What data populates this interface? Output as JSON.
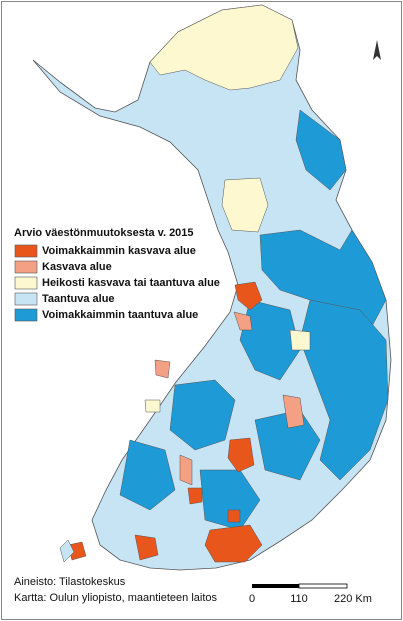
{
  "legend": {
    "title": "Arvio väestönmuutoksesta v. 2015",
    "items": [
      {
        "label": "Voimakkaimmin kasvava alue",
        "color": "#e8561c"
      },
      {
        "label": "Kasvava alue",
        "color": "#f3a084"
      },
      {
        "label": "Heikosti kasvava tai taantuva alue",
        "color": "#fdf8cf"
      },
      {
        "label": "Taantuva alue",
        "color": "#c7e4f5"
      },
      {
        "label": "Voimakkaimmin taantuva alue",
        "color": "#1e9ad6"
      }
    ]
  },
  "source": [
    "Aineisto: Tilastokeskus",
    "Kartta: Oulun yliopisto, maantieteen laitos"
  ],
  "scale_bar": {
    "labels": [
      "0",
      "110",
      "220 Km"
    ]
  }
}
